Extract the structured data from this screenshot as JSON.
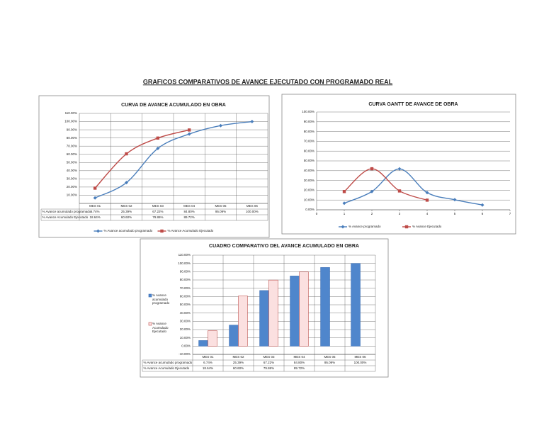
{
  "title": "GRAFICOS COMPARATIVOS DE AVANCE EJECUTADO CON PROGRAMADO REAL",
  "chart_data": [
    {
      "type": "line",
      "title": "CURVA DE AVANCE ACUMULADO EN OBRA",
      "categories": [
        "MES 01",
        "MES 02",
        "MES 03",
        "MES 04",
        "MES 05",
        "MES 06"
      ],
      "series": [
        {
          "name": "% Avance acumulado programado",
          "color": "#4a7ebb",
          "marker": "diamond",
          "values": [
            6.74,
            25.39,
            67.22,
            84.8,
            95.09,
            100
          ],
          "value_labels": [
            "6.74%",
            "25.39%",
            "67.22%",
            "84.80%",
            "95.09%",
            "100.00%"
          ]
        },
        {
          "name": "% Avance Acumulado Ejecutado",
          "color": "#be4b48",
          "marker": "square",
          "values": [
            18.64,
            60.6,
            79.86,
            89.72,
            null,
            null
          ],
          "value_labels": [
            "18.64%",
            "60.60%",
            "79.86%",
            "89.72%",
            null,
            null
          ]
        }
      ],
      "ylim": [
        0,
        110
      ],
      "yticks": [
        {
          "value": 10,
          "label": "10.00%"
        },
        {
          "value": 20,
          "label": "20.00%"
        },
        {
          "value": 30,
          "label": "30.00%"
        },
        {
          "value": 40,
          "label": "40.00%"
        },
        {
          "value": 50,
          "label": "50.00%"
        },
        {
          "value": 60,
          "label": "60.00%"
        },
        {
          "value": 70,
          "label": "70.00%"
        },
        {
          "value": 80,
          "label": "80.00%"
        },
        {
          "value": 90,
          "label": "90.00%"
        },
        {
          "value": 100,
          "label": "100.00%"
        },
        {
          "value": 110,
          "label": "110.00%"
        }
      ],
      "grid": true,
      "data_table": true,
      "legend": "bottom"
    },
    {
      "type": "scatter",
      "title": "CURVA GANTT DE AVANCE DE OBRA",
      "x": [
        1,
        2,
        3,
        4,
        5,
        6
      ],
      "series": [
        {
          "name": "% Avance programado",
          "color": "#4a7ebb",
          "marker": "diamond",
          "values": [
            6.74,
            18.65,
            41.83,
            17.58,
            10.29,
            4.91
          ]
        },
        {
          "name": "% Avance Ejecutado",
          "color": "#be4b48",
          "marker": "square",
          "values": [
            18.64,
            41.96,
            19.26,
            9.86,
            null,
            null
          ]
        }
      ],
      "xlim": [
        0,
        7
      ],
      "xticks": [
        0,
        1,
        2,
        3,
        4,
        5,
        6,
        7
      ],
      "ylim": [
        0,
        100
      ],
      "yticks": [
        {
          "value": 0,
          "label": "0.00%"
        },
        {
          "value": 10,
          "label": "10.00%"
        },
        {
          "value": 20,
          "label": "20.00%"
        },
        {
          "value": 30,
          "label": "30.00%"
        },
        {
          "value": 40,
          "label": "40.00%"
        },
        {
          "value": 50,
          "label": "50.00%"
        },
        {
          "value": 60,
          "label": "60.00%"
        },
        {
          "value": 70,
          "label": "70.00%"
        },
        {
          "value": 80,
          "label": "80.00%"
        },
        {
          "value": 90,
          "label": "90.00%"
        },
        {
          "value": 100,
          "label": "100.00%"
        }
      ],
      "grid": true,
      "legend": "bottom"
    },
    {
      "type": "bar",
      "title": "CUADRO COMPARATIVO DEL AVANCE ACUMULADO EN OBRA",
      "categories": [
        "MES 01",
        "MES 02",
        "MES 03",
        "MES 04",
        "MES 05",
        "MES 06"
      ],
      "series": [
        {
          "name": "% Avance acumulado programado",
          "color": "#3c6fb5",
          "fill": "#4f86cc",
          "values": [
            6.74,
            25.39,
            67.22,
            84.8,
            95.09,
            100
          ],
          "value_labels": [
            "6.74%",
            "25.39%",
            "67.22%",
            "84.80%",
            "95.09%",
            "100.00%"
          ]
        },
        {
          "name": "% Avance Acumulado Ejecutado",
          "color": "#c0504d",
          "fill": "#fbe0e0",
          "values": [
            18.64,
            60.6,
            79.86,
            89.72,
            null,
            null
          ],
          "value_labels": [
            "18.64%",
            "60.60%",
            "79.86%",
            "89.72%",
            null,
            null
          ]
        }
      ],
      "ylim": [
        -10,
        110
      ],
      "yticks": [
        {
          "value": -10,
          "label": "-10.00%"
        },
        {
          "value": 0,
          "label": "0.00%"
        },
        {
          "value": 10,
          "label": "10.00%"
        },
        {
          "value": 20,
          "label": "20.00%"
        },
        {
          "value": 30,
          "label": "30.00%"
        },
        {
          "value": 40,
          "label": "40.00%"
        },
        {
          "value": 50,
          "label": "50.00%"
        },
        {
          "value": 60,
          "label": "60.00%"
        },
        {
          "value": 70,
          "label": "70.00%"
        },
        {
          "value": 80,
          "label": "80.00%"
        },
        {
          "value": 90,
          "label": "90.00%"
        },
        {
          "value": 100,
          "label": "100.00%"
        },
        {
          "value": 110,
          "label": "110.00%"
        }
      ],
      "grid": true,
      "data_table": true,
      "legend": "left"
    }
  ]
}
